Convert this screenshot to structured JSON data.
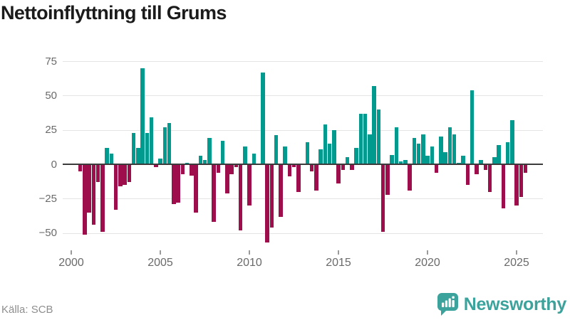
{
  "title": "Nettoinflyttning till Grums",
  "source": "Källa: SCB",
  "brand": {
    "name": "Newsworthy",
    "icon": "bar-chart-speech-bubble-icon"
  },
  "colors": {
    "positive_bar": "#009a8f",
    "negative_bar": "#9e0d4c",
    "grid": "#e4e4e4",
    "zero_line": "#3c3c3c",
    "axis_text": "#6a6a6a",
    "title_text": "#1b1b1b",
    "source_text": "#8e8e8e",
    "brand_teal": "#3ba39c",
    "tick_mark": "#9a9a9a"
  },
  "chart_data": {
    "type": "bar",
    "title": "Nettoinflyttning till Grums",
    "ylabel": "",
    "xlabel": "",
    "frequency": "quarterly",
    "start_period": "2000 Q3",
    "end_period": "2025 Q3",
    "legend": "none",
    "grid": "horizontal",
    "ylim": [
      -62,
      80
    ],
    "y_ticks": [
      75,
      50,
      25,
      0,
      -25,
      -50
    ],
    "y_tick_labels": [
      "75",
      "50",
      "25",
      "0",
      "−25",
      "−50"
    ],
    "x_ticks": [
      2000,
      2005,
      2010,
      2015,
      2020,
      2025
    ],
    "x_tick_labels": [
      "2000",
      "2005",
      "2010",
      "2015",
      "2020",
      "2025"
    ],
    "values": [
      -5,
      -51,
      -35,
      -44,
      -13,
      -49,
      12,
      8,
      -33,
      -16,
      -15,
      -13,
      23,
      12,
      70,
      23,
      34,
      -2,
      4,
      27,
      30,
      -29,
      -28,
      -7,
      1,
      -8,
      -35,
      6,
      3,
      19,
      -42,
      -6,
      17,
      -21,
      -7,
      -2,
      -48,
      13,
      -30,
      8,
      0,
      67,
      -57,
      -46,
      21,
      -38,
      13,
      -9,
      -2,
      -20,
      0,
      16,
      -5,
      -19,
      11,
      29,
      15,
      25,
      -14,
      -4,
      5,
      -4,
      12,
      37,
      37,
      22,
      57,
      40,
      -49,
      -22,
      7,
      27,
      2,
      3,
      -19,
      19,
      15,
      22,
      6,
      13,
      -6,
      20,
      9,
      27,
      22,
      1,
      6,
      -15,
      54,
      -7,
      3,
      -4,
      -20,
      5,
      14,
      -32,
      16,
      32,
      -30,
      -24,
      -6
    ]
  }
}
